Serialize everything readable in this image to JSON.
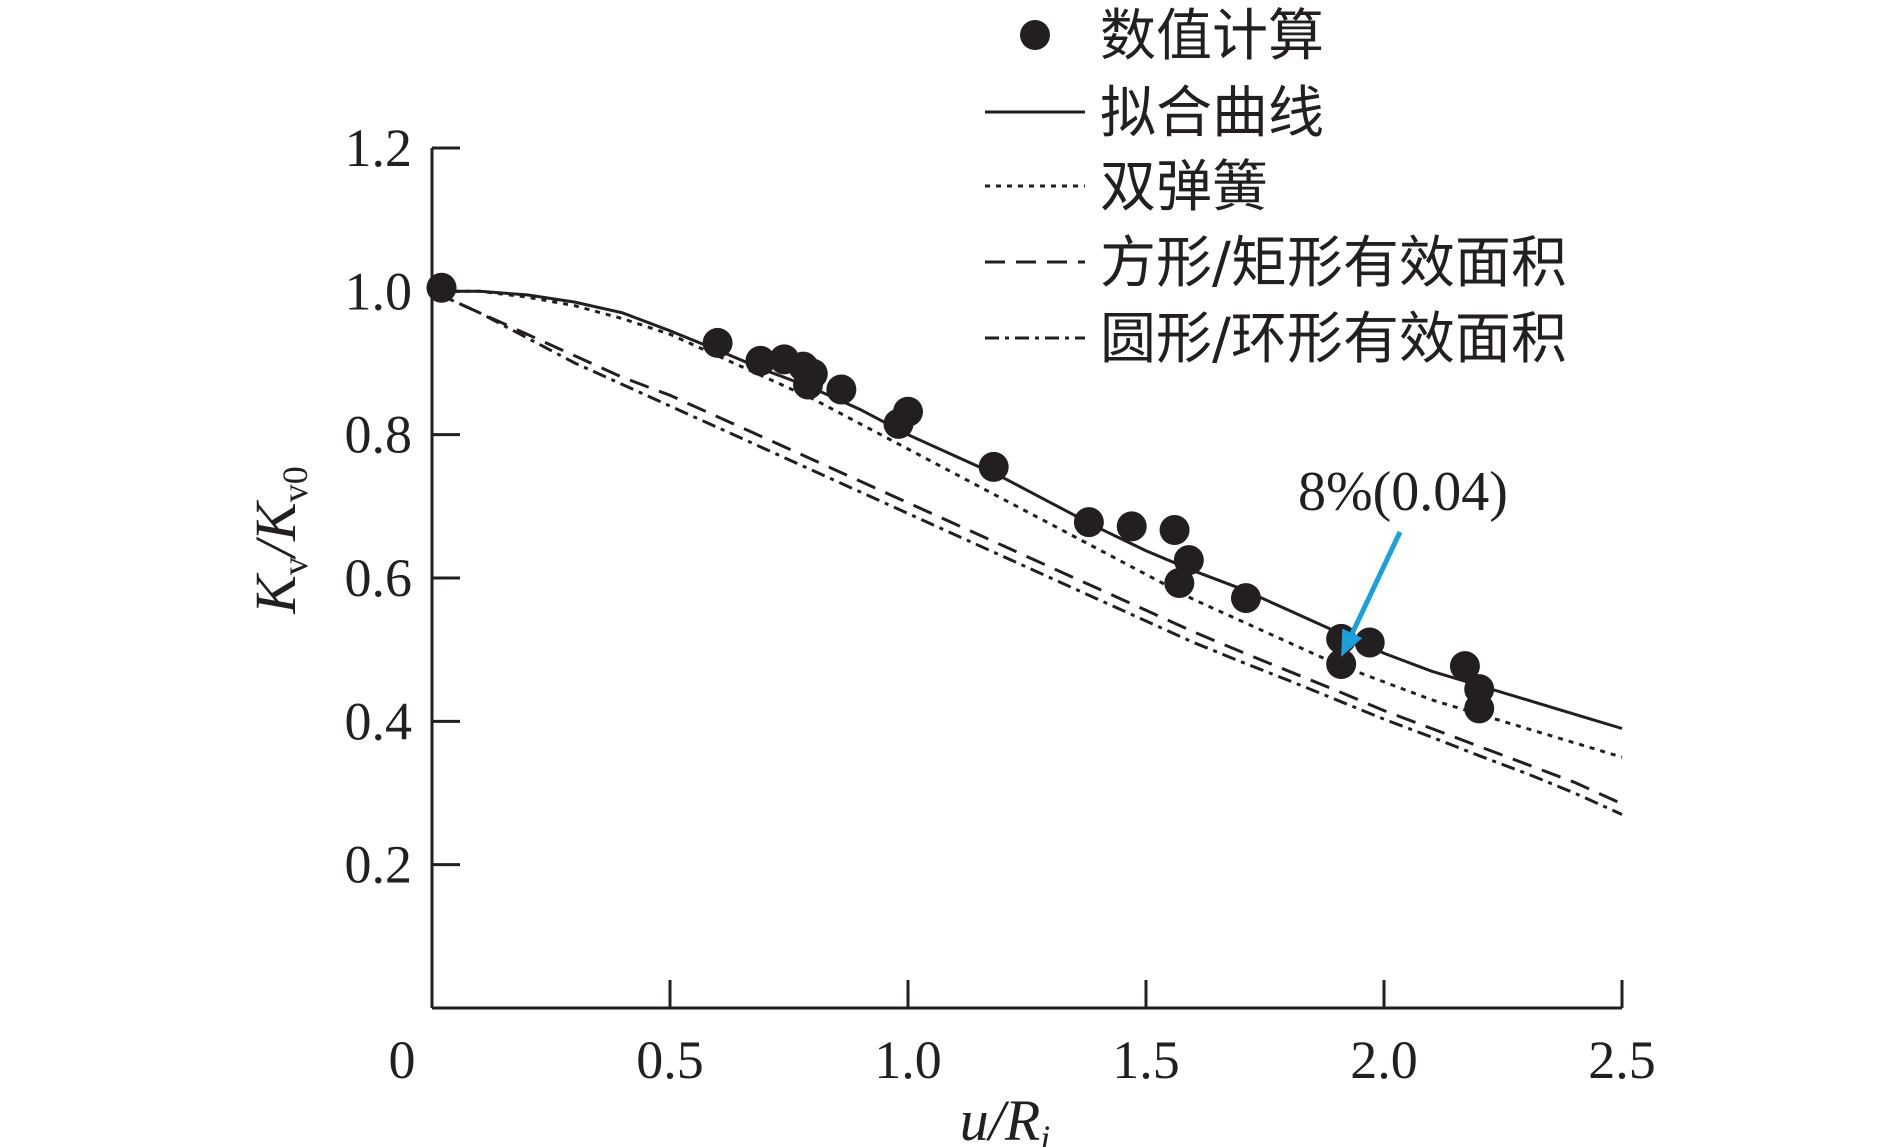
{
  "chart_data": {
    "type": "line",
    "title": "",
    "xlabel": {
      "main": "u/R",
      "sub": "i"
    },
    "ylabel": {
      "a": "K",
      "a_sub": "v",
      "slash": "/",
      "b": "K",
      "b_sub": "v0"
    },
    "xlim": [
      0,
      2.5
    ],
    "ylim": [
      0,
      1.2
    ],
    "x_ticks": [
      0,
      0.5,
      1.0,
      1.5,
      2.0,
      2.5
    ],
    "x_tick_labels": [
      "0",
      "0.5",
      "1.0",
      "1.5",
      "2.0",
      "2.5"
    ],
    "y_ticks": [
      0.2,
      0.4,
      0.6,
      0.8,
      1.0,
      1.2
    ],
    "y_tick_labels": [
      "0.2",
      "0.4",
      "0.6",
      "0.8",
      "1.0",
      "1.2"
    ],
    "grid": false,
    "legend_position": "top-right",
    "legend": [
      {
        "label": "数值计算",
        "style": "marker"
      },
      {
        "label": "拟合曲线",
        "style": "solid"
      },
      {
        "label": "双弹簧",
        "style": "dotted"
      },
      {
        "label": "方形/矩形有效面积",
        "style": "dashed"
      },
      {
        "label": "圆形/环形有效面积",
        "style": "dashdot"
      }
    ],
    "scatter": {
      "name": "数值计算",
      "points": [
        [
          0.02,
          1.005
        ],
        [
          0.6,
          0.928
        ],
        [
          0.69,
          0.903
        ],
        [
          0.74,
          0.905
        ],
        [
          0.78,
          0.895
        ],
        [
          0.8,
          0.885
        ],
        [
          0.79,
          0.87
        ],
        [
          0.86,
          0.863
        ],
        [
          0.98,
          0.815
        ],
        [
          1.0,
          0.832
        ],
        [
          1.18,
          0.755
        ],
        [
          1.38,
          0.678
        ],
        [
          1.47,
          0.672
        ],
        [
          1.56,
          0.667
        ],
        [
          1.59,
          0.625
        ],
        [
          1.57,
          0.593
        ],
        [
          1.71,
          0.572
        ],
        [
          1.91,
          0.515
        ],
        [
          1.91,
          0.48
        ],
        [
          1.97,
          0.51
        ],
        [
          2.17,
          0.477
        ],
        [
          2.2,
          0.445
        ],
        [
          2.2,
          0.418
        ]
      ]
    },
    "series": [
      {
        "name": "拟合曲线",
        "style": "solid",
        "x": [
          0,
          0.1,
          0.2,
          0.3,
          0.4,
          0.5,
          0.6,
          0.7,
          0.8,
          0.9,
          1.0,
          1.1,
          1.2,
          1.3,
          1.4,
          1.5,
          1.6,
          1.7,
          1.8,
          1.9,
          2.0,
          2.1,
          2.2,
          2.3,
          2.4,
          2.5
        ],
        "y": [
          1.0,
          1.0,
          0.995,
          0.985,
          0.97,
          0.945,
          0.918,
          0.89,
          0.865,
          0.835,
          0.8,
          0.77,
          0.74,
          0.705,
          0.67,
          0.638,
          0.61,
          0.585,
          0.555,
          0.525,
          0.495,
          0.47,
          0.45,
          0.43,
          0.41,
          0.39
        ]
      },
      {
        "name": "双弹簧",
        "style": "dotted",
        "x": [
          0,
          0.1,
          0.2,
          0.3,
          0.4,
          0.5,
          0.6,
          0.7,
          0.8,
          0.9,
          1.0,
          1.1,
          1.2,
          1.3,
          1.4,
          1.5,
          1.6,
          1.7,
          1.8,
          1.9,
          2.0,
          2.1,
          2.2,
          2.3,
          2.4,
          2.5
        ],
        "y": [
          1.0,
          1.0,
          0.992,
          0.98,
          0.962,
          0.94,
          0.91,
          0.88,
          0.85,
          0.815,
          0.78,
          0.745,
          0.71,
          0.675,
          0.64,
          0.605,
          0.57,
          0.54,
          0.51,
          0.48,
          0.455,
          0.43,
          0.41,
          0.39,
          0.37,
          0.35
        ]
      },
      {
        "name": "方形/矩形有效面积",
        "style": "dashed",
        "x": [
          0,
          0.1,
          0.2,
          0.3,
          0.4,
          0.5,
          0.6,
          0.7,
          0.8,
          0.9,
          1.0,
          1.1,
          1.2,
          1.3,
          1.4,
          1.5,
          1.6,
          1.7,
          1.8,
          1.9,
          2.0,
          2.1,
          2.2,
          2.3,
          2.4,
          2.5
        ],
        "y": [
          1.0,
          0.97,
          0.94,
          0.91,
          0.88,
          0.855,
          0.825,
          0.795,
          0.765,
          0.735,
          0.705,
          0.675,
          0.645,
          0.615,
          0.585,
          0.555,
          0.525,
          0.497,
          0.47,
          0.443,
          0.415,
          0.39,
          0.365,
          0.34,
          0.315,
          0.285
        ]
      },
      {
        "name": "圆形/环形有效面积",
        "style": "dashdot",
        "x": [
          0,
          0.1,
          0.2,
          0.3,
          0.4,
          0.5,
          0.6,
          0.7,
          0.8,
          0.9,
          1.0,
          1.1,
          1.2,
          1.3,
          1.4,
          1.5,
          1.6,
          1.7,
          1.8,
          1.9,
          2.0,
          2.1,
          2.2,
          2.3,
          2.4,
          2.5
        ],
        "y": [
          1.0,
          0.97,
          0.935,
          0.9,
          0.87,
          0.84,
          0.81,
          0.78,
          0.75,
          0.72,
          0.69,
          0.66,
          0.63,
          0.6,
          0.57,
          0.54,
          0.51,
          0.483,
          0.457,
          0.43,
          0.403,
          0.378,
          0.352,
          0.327,
          0.3,
          0.27
        ]
      }
    ],
    "annotation": {
      "text": "8%(0.04)",
      "target": [
        1.91,
        0.49
      ],
      "arrow_color": "#1ba1d9"
    }
  }
}
